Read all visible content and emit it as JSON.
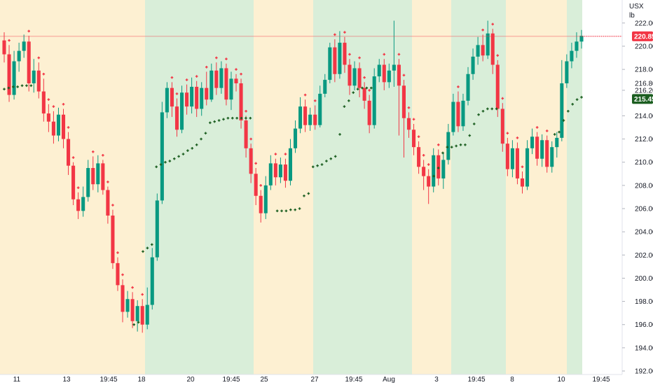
{
  "chart_data": {
    "type": "candlestick",
    "y_axis": {
      "currency": "USX",
      "unit": "lb",
      "range": [
        192,
        223.5
      ],
      "ticks": [
        192,
        194,
        196,
        198,
        200,
        202,
        204,
        206,
        208,
        210,
        212,
        214,
        216.2,
        218,
        220,
        222
      ],
      "tick_labels": [
        "192.00",
        "194.00",
        "196.00",
        "198.00",
        "200.00",
        "202.00",
        "204.00",
        "206.00",
        "208.00",
        "210.00",
        "212.00",
        "214.00",
        "216.20",
        "218.00",
        "220.00",
        "222.00"
      ]
    },
    "x_axis": {
      "labels": [
        "11",
        "13",
        "19:45",
        "18",
        "20",
        "19:45",
        "25",
        "27",
        "19:45",
        "Aug",
        "3",
        "19:45",
        "8",
        "10",
        "19:45"
      ]
    },
    "last_price": {
      "value": 220.85,
      "label": "220.85",
      "color": "#f23645"
    },
    "indicator_price": {
      "value": 215.45,
      "label": "215.45",
      "color": "#1b5e20"
    },
    "extra_price_label": {
      "value": 216.8,
      "label": "216.80"
    },
    "session_colors": {
      "amber": "#fdf0d2",
      "green": "#d9eed9"
    },
    "colors": {
      "up": "#089981",
      "down": "#f23645",
      "dots_up": "#1b5e20",
      "dots_down": "#f23645"
    },
    "candles": [
      [
        220.5,
        219.3,
        221.2,
        218.6
      ],
      [
        219.3,
        215.8,
        220.1,
        215.2
      ],
      [
        215.8,
        218.7,
        219.6,
        215.4
      ],
      [
        218.7,
        219.6,
        220.3,
        217.8
      ],
      [
        219.6,
        220.4,
        221.0,
        219.0
      ],
      [
        220.4,
        216.8,
        220.9,
        216.1
      ],
      [
        216.8,
        217.9,
        218.9,
        216.0
      ],
      [
        217.9,
        216.1,
        218.6,
        215.5
      ],
      [
        216.1,
        214.2,
        217.2,
        213.5
      ],
      [
        214.2,
        213.5,
        215.0,
        212.6
      ],
      [
        213.5,
        212.3,
        214.4,
        211.6
      ],
      [
        212.3,
        214.1,
        214.7,
        211.8
      ],
      [
        214.1,
        212.0,
        214.6,
        211.2
      ],
      [
        212.0,
        209.7,
        212.6,
        208.9
      ],
      [
        209.7,
        206.8,
        210.0,
        206.3
      ],
      [
        206.8,
        205.8,
        207.4,
        205.1
      ],
      [
        205.8,
        207.0,
        207.9,
        205.3
      ],
      [
        207.0,
        209.5,
        210.2,
        206.6
      ],
      [
        209.5,
        208.1,
        210.5,
        207.6
      ],
      [
        208.1,
        209.9,
        210.6,
        207.4
      ],
      [
        209.9,
        207.6,
        210.2,
        207.2
      ],
      [
        207.6,
        205.4,
        207.9,
        204.7
      ],
      [
        205.4,
        201.3,
        205.9,
        200.8
      ],
      [
        201.3,
        199.4,
        201.8,
        198.9
      ],
      [
        199.4,
        197.1,
        199.9,
        196.2
      ],
      [
        197.1,
        198.2,
        198.9,
        196.6
      ],
      [
        198.2,
        196.3,
        198.8,
        195.7
      ],
      [
        196.3,
        197.6,
        198.1,
        195.4
      ],
      [
        197.6,
        196.0,
        198.2,
        195.3
      ],
      [
        196.0,
        197.7,
        199.2,
        195.6
      ],
      [
        197.7,
        201.8,
        202.6,
        197.3
      ],
      [
        201.8,
        206.7,
        207.3,
        201.5
      ],
      [
        206.7,
        214.3,
        215.2,
        206.4
      ],
      [
        214.3,
        216.4,
        216.9,
        213.8
      ],
      [
        216.4,
        214.8,
        216.9,
        213.9
      ],
      [
        214.8,
        212.8,
        215.5,
        212.2
      ],
      [
        212.8,
        216.0,
        216.6,
        212.5
      ],
      [
        216.0,
        214.8,
        216.7,
        214.1
      ],
      [
        214.8,
        216.5,
        217.3,
        214.2
      ],
      [
        216.5,
        214.6,
        217.0,
        213.9
      ],
      [
        214.6,
        216.4,
        216.9,
        214.0
      ],
      [
        216.4,
        215.4,
        217.8,
        214.9
      ],
      [
        215.4,
        217.9,
        218.5,
        215.2
      ],
      [
        217.9,
        216.4,
        218.6,
        215.8
      ],
      [
        216.4,
        218.1,
        218.7,
        215.9
      ],
      [
        218.1,
        215.4,
        218.5,
        214.9
      ],
      [
        215.4,
        217.2,
        217.8,
        214.5
      ],
      [
        217.2,
        216.8,
        217.6,
        216.1
      ],
      [
        216.8,
        213.6,
        217.2,
        212.9
      ],
      [
        213.6,
        211.2,
        214.0,
        210.4
      ],
      [
        211.2,
        209.0,
        211.6,
        208.2
      ],
      [
        209.0,
        207.1,
        209.5,
        206.3
      ],
      [
        207.1,
        205.6,
        207.6,
        204.8
      ],
      [
        205.6,
        208.0,
        208.8,
        205.1
      ],
      [
        208.0,
        209.9,
        210.6,
        207.6
      ],
      [
        209.9,
        208.7,
        210.3,
        208.0
      ],
      [
        208.7,
        209.8,
        210.4,
        208.2
      ],
      [
        209.8,
        208.4,
        210.3,
        207.8
      ],
      [
        208.4,
        211.2,
        212.0,
        208.0
      ],
      [
        211.2,
        212.9,
        213.6,
        210.8
      ],
      [
        212.9,
        214.8,
        215.6,
        212.5
      ],
      [
        214.8,
        213.2,
        215.4,
        212.6
      ],
      [
        213.2,
        214.1,
        214.7,
        212.7
      ],
      [
        214.1,
        213.2,
        214.9,
        212.8
      ],
      [
        213.2,
        215.9,
        216.6,
        213.0
      ],
      [
        215.9,
        217.1,
        217.6,
        215.6
      ],
      [
        217.1,
        219.9,
        220.3,
        216.8
      ],
      [
        219.9,
        217.6,
        220.6,
        216.9
      ],
      [
        217.6,
        220.3,
        221.3,
        217.2
      ],
      [
        220.3,
        218.4,
        220.8,
        217.7
      ],
      [
        218.4,
        216.6,
        218.9,
        215.8
      ],
      [
        216.6,
        218.1,
        218.7,
        216.2
      ],
      [
        218.1,
        216.4,
        218.6,
        215.6
      ],
      [
        216.4,
        215.3,
        216.9,
        214.6
      ],
      [
        215.3,
        213.2,
        215.8,
        212.5
      ],
      [
        213.2,
        217.4,
        218.1,
        212.9
      ],
      [
        217.4,
        218.4,
        218.9,
        216.9
      ],
      [
        218.4,
        216.9,
        218.9,
        216.2
      ],
      [
        216.9,
        217.9,
        218.5,
        216.4
      ],
      [
        217.9,
        218.4,
        222.2,
        216.5
      ],
      [
        218.4,
        216.6,
        218.9,
        212.3
      ],
      [
        216.6,
        213.8,
        217.1,
        210.4
      ],
      [
        213.8,
        212.8,
        214.3,
        212.1
      ],
      [
        212.8,
        211.3,
        213.3,
        210.6
      ],
      [
        211.3,
        209.6,
        211.8,
        209.0
      ],
      [
        209.6,
        208.8,
        210.2,
        207.6
      ],
      [
        208.8,
        207.9,
        209.4,
        206.4
      ],
      [
        207.9,
        210.6,
        211.2,
        207.4
      ],
      [
        210.6,
        208.6,
        211.1,
        208.0
      ],
      [
        208.6,
        210.2,
        210.8,
        207.7
      ],
      [
        210.2,
        212.6,
        213.3,
        209.8
      ],
      [
        212.6,
        215.2,
        215.9,
        212.3
      ],
      [
        215.2,
        213.1,
        216.1,
        212.6
      ],
      [
        213.1,
        215.3,
        215.9,
        212.7
      ],
      [
        215.3,
        217.6,
        218.2,
        214.9
      ],
      [
        217.6,
        219.1,
        219.8,
        217.1
      ],
      [
        219.1,
        220.1,
        220.8,
        218.4
      ],
      [
        220.1,
        219.2,
        221.0,
        218.7
      ],
      [
        219.2,
        221.1,
        222.2,
        218.9
      ],
      [
        221.1,
        218.4,
        221.5,
        217.6
      ],
      [
        218.4,
        214.6,
        218.8,
        213.9
      ],
      [
        214.6,
        211.6,
        215.1,
        210.9
      ],
      [
        211.6,
        209.4,
        212.1,
        208.8
      ],
      [
        209.4,
        211.2,
        211.9,
        208.7
      ],
      [
        211.2,
        208.6,
        211.7,
        208.1
      ],
      [
        208.6,
        207.9,
        209.2,
        207.3
      ],
      [
        207.9,
        211.2,
        211.9,
        207.6
      ],
      [
        211.2,
        212.2,
        212.9,
        210.7
      ],
      [
        212.2,
        210.3,
        212.6,
        209.7
      ],
      [
        210.3,
        211.9,
        212.4,
        209.6
      ],
      [
        211.9,
        209.6,
        212.3,
        209.1
      ],
      [
        209.6,
        211.3,
        211.8,
        209.1
      ],
      [
        211.3,
        212.1,
        212.6,
        210.4
      ],
      [
        212.1,
        216.8,
        218.8,
        211.8
      ],
      [
        216.8,
        218.7,
        219.3,
        216.4
      ],
      [
        218.7,
        219.6,
        220.3,
        218.1
      ],
      [
        219.6,
        220.4,
        221.2,
        219.0
      ],
      [
        220.4,
        220.9,
        221.4,
        219.8
      ]
    ],
    "indicator_dots": [
      216.3,
      216.4,
      216.5,
      216.5,
      216.6,
      216.6,
      216.6,
      null,
      null,
      null,
      null,
      null,
      null,
      null,
      null,
      null,
      null,
      null,
      null,
      null,
      null,
      null,
      null,
      null,
      null,
      null,
      null,
      null,
      null,
      196.0,
      196.2,
      202.3,
      202.6,
      202.9,
      209.6,
      209.8,
      210.0,
      210.1,
      210.3,
      210.5,
      210.7,
      211.0,
      211.2,
      211.5,
      212.0,
      212.5,
      213.4,
      213.5,
      213.6,
      213.7,
      213.8,
      213.8,
      213.8,
      213.8,
      213.8,
      213.8,
      null,
      null,
      null,
      null,
      null,
      205.8,
      205.8,
      205.8,
      205.9,
      205.9,
      206.0,
      207.1,
      207.3,
      209.6,
      209.7,
      209.8,
      210.1,
      210.3,
      210.5,
      212.4,
      214.8,
      215.3,
      216.0,
      216.3,
      216.4,
      216.4,
      216.4,
      null,
      null,
      null,
      null,
      null,
      null,
      null,
      null,
      null,
      null,
      null,
      null,
      null,
      208.8,
      209.5,
      210.8,
      211.3,
      211.3,
      211.4,
      211.5,
      211.5,
      212.3,
      213.3,
      214.1,
      214.4,
      214.6,
      214.6,
      214.6,
      null,
      null,
      null,
      null,
      null,
      null,
      null,
      null,
      null,
      null,
      null,
      null,
      212.4,
      212.6,
      213.6,
      214.4,
      215.0,
      215.4,
      215.6
    ],
    "resistance_dots": [
      null,
      null,
      220.4,
      220.1,
      219.8,
      219.4,
      219.0,
      218.6,
      218.3,
      218.1,
      218.0,
      218.0,
      218.0,
      217.9,
      216.8,
      216.7,
      216.3,
      216.0,
      215.9,
      215.9,
      216.0,
      216.1,
      null,
      null,
      null,
      null,
      210.4,
      210.4,
      210.4,
      210.4,
      210.4,
      210.4,
      210.4,
      210.4,
      210.4,
      210.4,
      210.4,
      210.4,
      205.7,
      205.6,
      205.5,
      205.5,
      205.5,
      205.5,
      205.5,
      205.5,
      205.5,
      205.5,
      205.5,
      205.5
    ]
  }
}
